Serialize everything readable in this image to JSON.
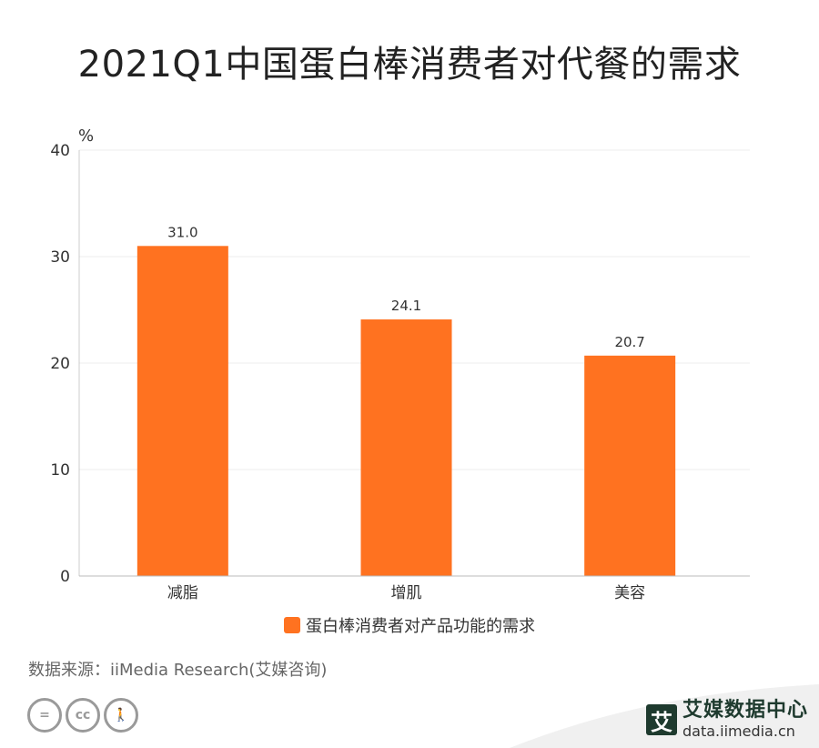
{
  "title": "2021Q1中国蛋白棒消费者对代餐的需求",
  "chart_data": {
    "type": "bar",
    "categories": [
      "减脂",
      "增肌",
      "美容"
    ],
    "series": [
      {
        "name": "蛋白棒消费者对产品功能的需求",
        "values": [
          31.0,
          24.1,
          20.7
        ],
        "color": "#FF7220"
      }
    ],
    "value_labels": [
      "31.0",
      "24.1",
      "20.7"
    ],
    "ylabel": "%",
    "ylim": [
      0,
      40
    ],
    "yticks": [
      "0",
      "10",
      "20",
      "30",
      "40"
    ],
    "grid": true,
    "legend_position": "bottom"
  },
  "source": "数据来源：iiMedia Research(艾媒咨询)",
  "brand": {
    "logo_char": "艾",
    "name": "艾媒数据中心",
    "url": "data.iimedia.cn",
    "color": "#1E3A2E"
  },
  "license_icons": [
    "equals-icon",
    "cc-icon",
    "person-icon"
  ],
  "license_glyphs": [
    "=",
    "cc",
    "🚶"
  ]
}
